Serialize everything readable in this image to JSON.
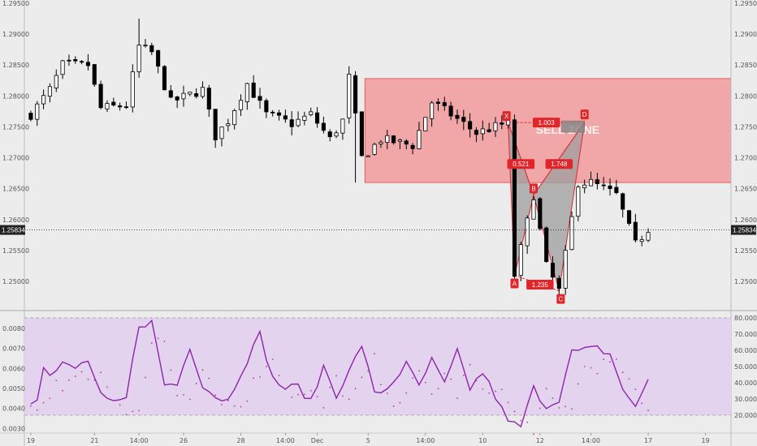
{
  "chart_data": [
    {
      "type": "candlestick",
      "title": "",
      "ylim": [
        1.2457,
        1.2955
      ],
      "yticks": [
        "1.29500",
        "1.29000",
        "1.28500",
        "1.28000",
        "1.27500",
        "1.27000",
        "1.26500",
        "1.26000",
        "1.25500",
        "1.25000"
      ],
      "ytick_values": [
        1.295,
        1.29,
        1.285,
        1.28,
        1.275,
        1.27,
        1.265,
        1.26,
        1.255,
        1.25
      ],
      "xticks": [
        "19",
        "21",
        "14:00",
        "26",
        "28",
        "14:00",
        "Dec",
        "5",
        "14:00",
        "10",
        "12",
        "14:00",
        "17",
        "19"
      ],
      "xtick_positions": [
        0,
        10,
        17,
        24,
        33,
        40,
        45,
        53,
        62,
        71,
        80,
        88,
        97,
        106
      ],
      "bar_count": 110,
      "price_label": "1.25834",
      "price_value": 1.25834,
      "sell_zone": {
        "label": "SELL ZONE",
        "top": 1.2828,
        "bottom": 1.266,
        "start_bar": 53
      },
      "pattern": {
        "points": {
          "X": [
            75,
            1.2757
          ],
          "A": [
            76,
            1.251
          ],
          "B": [
            79,
            1.264
          ],
          "C": [
            83,
            1.2485
          ],
          "D": [
            87,
            1.2757
          ]
        },
        "ratios": [
          {
            "label": "1.003",
            "at": [
              81,
              1.2757
            ]
          },
          {
            "label": "0.521",
            "at": [
              77,
              1.269
            ]
          },
          {
            "label": "1.748",
            "at": [
              83,
              1.269
            ]
          },
          {
            "label": "1.235",
            "at": [
              80,
              1.2495
            ]
          }
        ],
        "pivot_labels": [
          "X",
          "A",
          "B",
          "C",
          "D"
        ]
      },
      "grid": false
    },
    {
      "type": "line",
      "name": "oscillator",
      "ylim": [
        0.00285,
        0.00885
      ],
      "left_ticks": [
        "0.0080",
        "0.0070",
        "0.0060",
        "0.0050",
        "0.0040",
        "0.0030"
      ],
      "left_tick_values": [
        0.008,
        0.007,
        0.006,
        0.005,
        0.004,
        0.003
      ],
      "right_ticks": [
        "80.0000",
        "70.0000",
        "60.0000",
        "50.0000",
        "40.0000",
        "30.0000",
        "20.0000"
      ],
      "right_tick_values": [
        80,
        70,
        60,
        50,
        40,
        30,
        20
      ],
      "band": [
        21,
        79
      ]
    }
  ],
  "colors": {
    "bull": "#ffffff",
    "bear": "#000000",
    "wick": "#000000",
    "zone_fill": "#f2a0a0",
    "zone_stroke": "#e05050",
    "pattern_fill": "#9e9e9e",
    "pattern_stroke": "#e0262b",
    "label_bg": "#e0262b",
    "osc_line": "#8e24aa",
    "osc_fill": "#e3d3ef",
    "osc_dots": "#b04090",
    "price_tag": "#222222"
  }
}
